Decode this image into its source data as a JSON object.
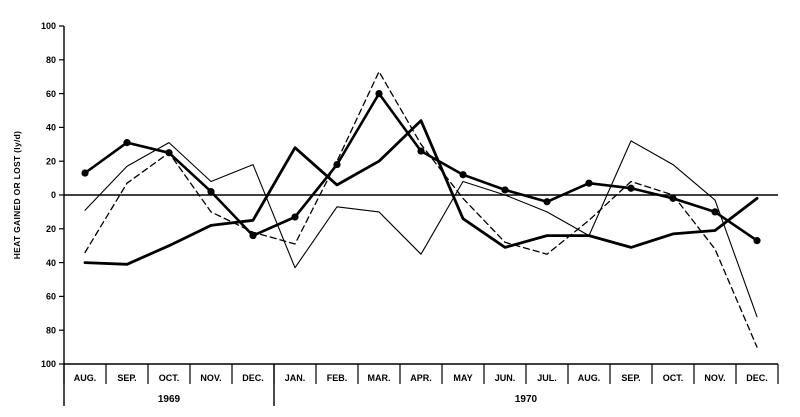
{
  "chart_data": {
    "type": "line",
    "title": "",
    "ylabel": "HEAT GAINED OR LOST (ly/d)",
    "xlabel": "",
    "ylim": [
      -100,
      100
    ],
    "yticks": [
      100,
      80,
      60,
      40,
      20,
      0,
      -20,
      -40,
      -60,
      -80,
      -100
    ],
    "ytick_labels": [
      "100",
      "80",
      "60",
      "40",
      "20",
      "0",
      "20",
      "40",
      "60",
      "80",
      "100"
    ],
    "categories": [
      "AUG.",
      "SEP.",
      "OCT.",
      "NOV.",
      "DEC.",
      "JAN.",
      "FEB.",
      "MAR.",
      "APR.",
      "MAY",
      "JUN.",
      "JUL.",
      "AUG.",
      "SEP.",
      "OCT.",
      "NOV.",
      "DEC."
    ],
    "year_groups": [
      {
        "label": "1969",
        "start": 0,
        "end": 4
      },
      {
        "label": "1970",
        "start": 5,
        "end": 16
      }
    ],
    "zero_line": true,
    "grid": false,
    "series": [
      {
        "style": "thick-dots",
        "values": [
          13,
          31,
          25,
          2,
          -24,
          -13,
          18,
          60,
          26,
          12,
          3,
          -4,
          7,
          4,
          -2,
          -10,
          -27
        ]
      },
      {
        "style": "thick",
        "values": [
          -40,
          -41,
          -30,
          -18,
          -15,
          28,
          6,
          20,
          44,
          -14,
          -31,
          -24,
          -24,
          -31,
          -23,
          -21,
          -2
        ]
      },
      {
        "style": "dashed",
        "values": [
          -34,
          7,
          25,
          -10,
          -22,
          -29,
          20,
          73,
          30,
          -2,
          -28,
          -35,
          -15,
          8,
          0,
          -32,
          -90
        ]
      },
      {
        "style": "thin",
        "values": [
          -9,
          17,
          31,
          8,
          18,
          -43,
          -7,
          -10,
          -35,
          8,
          0,
          -10,
          -24,
          32,
          18,
          -3,
          -72
        ]
      }
    ]
  }
}
